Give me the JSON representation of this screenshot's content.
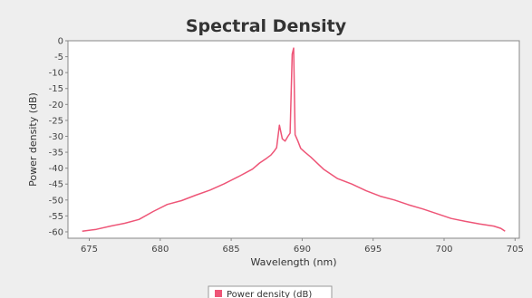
{
  "chart_data": {
    "type": "line",
    "title": "Spectral Density",
    "xlabel": "Wavelength (nm)",
    "ylabel": "Power density (dB)",
    "xlim": [
      673.5,
      705.3
    ],
    "ylim": [
      -62,
      0
    ],
    "x_ticks": [
      675,
      680,
      685,
      690,
      695,
      700,
      705
    ],
    "y_ticks": [
      0,
      -5,
      -10,
      -15,
      -20,
      -25,
      -30,
      -35,
      -40,
      -45,
      -50,
      -55,
      -60
    ],
    "grid": false,
    "legend_position": "bottom-center",
    "colors": {
      "series": "#ee5577",
      "plot_bg": "#ffffff",
      "page_bg": "#eeeeee",
      "axis": "#888888"
    },
    "series": [
      {
        "name": "Power density (dB)",
        "x": [
          674.5,
          675.5,
          676.5,
          677.5,
          678.5,
          679.5,
          680.5,
          681.5,
          682.5,
          683.5,
          684.5,
          685.5,
          686.5,
          687.0,
          687.5,
          687.8,
          688.0,
          688.2,
          688.4,
          688.6,
          688.8,
          689.0,
          689.15,
          689.3,
          689.4,
          689.5,
          689.7,
          689.9,
          690.2,
          690.6,
          691.0,
          691.5,
          692.5,
          693.5,
          694.5,
          695.5,
          696.5,
          697.5,
          698.5,
          699.5,
          700.5,
          701.5,
          702.5,
          703.5,
          704.0,
          704.3
        ],
        "y": [
          -59.8,
          -59.2,
          -58.2,
          -57.3,
          -56.1,
          -53.6,
          -51.4,
          -50.2,
          -48.5,
          -46.9,
          -44.9,
          -42.7,
          -40.3,
          -38.4,
          -36.9,
          -35.9,
          -34.8,
          -33.6,
          -26.5,
          -30.8,
          -31.5,
          -30.0,
          -29.0,
          -4.2,
          -2.3,
          -29.5,
          -31.5,
          -33.8,
          -35.0,
          -36.5,
          -38.2,
          -40.3,
          -43.3,
          -45.0,
          -47.1,
          -48.8,
          -50.0,
          -51.5,
          -52.8,
          -54.3,
          -55.8,
          -56.7,
          -57.5,
          -58.2,
          -58.9,
          -59.8
        ]
      }
    ]
  }
}
